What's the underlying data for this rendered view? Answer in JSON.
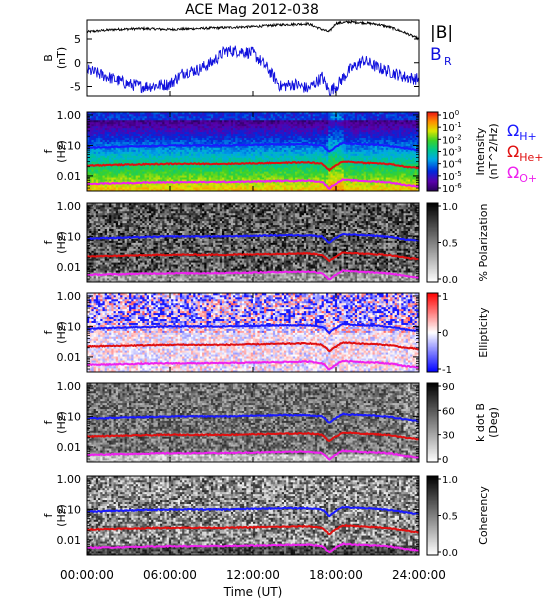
{
  "title": "ACE Mag 2012-038",
  "colors": {
    "B_total": "#000000",
    "B_R": "#1010dd",
    "H_plus": "#1a1aff",
    "He_plus": "#e01010",
    "O_plus": "#ee22ee"
  },
  "chart_data": [
    {
      "type": "line",
      "panel": "magnetic-field",
      "ylabel": "B\n(nT)",
      "ylim": [
        -7,
        9
      ],
      "yticks": [
        "5",
        "0",
        "-5"
      ],
      "xlim": [
        0,
        24
      ],
      "series": [
        {
          "name": "|B|",
          "color": "#000000",
          "x": [
            0,
            2,
            4,
            6,
            8,
            10,
            12,
            14,
            16,
            17,
            17.5,
            18,
            19,
            20,
            21,
            22,
            23,
            24
          ],
          "y": [
            6.5,
            7.0,
            7.2,
            7.0,
            7.2,
            7.4,
            7.6,
            8.0,
            8.2,
            7.0,
            6.5,
            8.3,
            8.6,
            8.4,
            8.1,
            7.4,
            6.3,
            5.0
          ]
        },
        {
          "name": "B_R",
          "color": "#1010dd",
          "x": [
            0,
            1,
            2,
            3,
            4,
            5,
            6,
            7,
            8,
            9,
            10,
            11,
            12,
            13,
            14,
            15,
            16,
            17,
            17.5,
            18,
            19,
            20,
            21,
            22,
            23,
            24
          ],
          "y": [
            -1.5,
            -2.5,
            -3.5,
            -4.5,
            -5.0,
            -4.8,
            -4.5,
            -2.0,
            -1.5,
            0.0,
            2.5,
            2.5,
            2.0,
            -1.0,
            -5.0,
            -4.5,
            -5.5,
            -3.0,
            -6.0,
            -5.0,
            -1.5,
            0.5,
            -1.0,
            -2.0,
            -3.0,
            -3.5
          ]
        }
      ],
      "legend": [
        "|B|",
        "B",
        "R"
      ]
    },
    {
      "type": "heatmap",
      "panel": "intensity",
      "ylabel": "f\n(Hz)",
      "yticks": [
        "1.00",
        "0.10",
        "0.01"
      ],
      "colorbar_label": "Intensity\n(nT^2/Hz)",
      "colorbar_ticks": [
        "10^0",
        "10^-1",
        "10^-2",
        "10^-3",
        "10^-4",
        "10^-5",
        "10^-6"
      ],
      "legend": [
        "Ω H+",
        "Ω He+",
        "Ω O+"
      ]
    },
    {
      "type": "heatmap",
      "panel": "polarization",
      "ylabel": "f\n(Hz)",
      "yticks": [
        "1.00",
        "0.10",
        "0.01"
      ],
      "colorbar_label": "% Polarization",
      "colorbar_ticks": [
        "1.0",
        "0.5",
        "0.0"
      ]
    },
    {
      "type": "heatmap",
      "panel": "ellipticity",
      "ylabel": "f\n(Hz)",
      "yticks": [
        "1.00",
        "0.10",
        "0.01"
      ],
      "colorbar_label": "Ellipticity",
      "colorbar_ticks": [
        "1",
        "0",
        "-1"
      ]
    },
    {
      "type": "heatmap",
      "panel": "k-dot-b",
      "ylabel": "f\n(Hz)",
      "yticks": [
        "1.00",
        "0.10",
        "0.01"
      ],
      "colorbar_label": "k dot B\n(Deg)",
      "colorbar_ticks": [
        "90",
        "60",
        "30",
        "0"
      ]
    },
    {
      "type": "heatmap",
      "panel": "coherency",
      "ylabel": "f\n(Hz)",
      "yticks": [
        "1.00",
        "0.10",
        "0.01"
      ],
      "colorbar_label": "Coherency",
      "colorbar_ticks": [
        "1.0",
        "0.5",
        "0.0"
      ]
    }
  ],
  "gyrofrequency_lines": {
    "x": [
      0,
      2,
      4,
      6,
      8,
      10,
      12,
      14,
      16,
      17,
      17.5,
      18,
      18.5,
      19,
      20,
      21,
      22,
      23,
      24
    ],
    "H_plus": [
      0.085,
      0.09,
      0.095,
      0.1,
      0.1,
      0.1,
      0.105,
      0.11,
      0.11,
      0.1,
      0.06,
      0.09,
      0.12,
      0.115,
      0.11,
      0.105,
      0.095,
      0.08,
      0.07
    ],
    "He_plus": [
      0.022,
      0.023,
      0.024,
      0.025,
      0.025,
      0.025,
      0.026,
      0.027,
      0.028,
      0.025,
      0.015,
      0.022,
      0.03,
      0.029,
      0.027,
      0.026,
      0.024,
      0.02,
      0.018
    ],
    "O_plus": [
      0.0055,
      0.0057,
      0.006,
      0.0062,
      0.0062,
      0.0063,
      0.0065,
      0.0068,
      0.007,
      0.0063,
      0.0038,
      0.0056,
      0.0075,
      0.0072,
      0.0068,
      0.0065,
      0.006,
      0.005,
      0.0045
    ]
  },
  "x_axis": {
    "label": "Time (UT)",
    "ticks": [
      "00:00:00",
      "06:00:00",
      "12:00:00",
      "18:00:00",
      "24:00:00"
    ],
    "values": [
      0,
      6,
      12,
      18,
      24
    ]
  }
}
